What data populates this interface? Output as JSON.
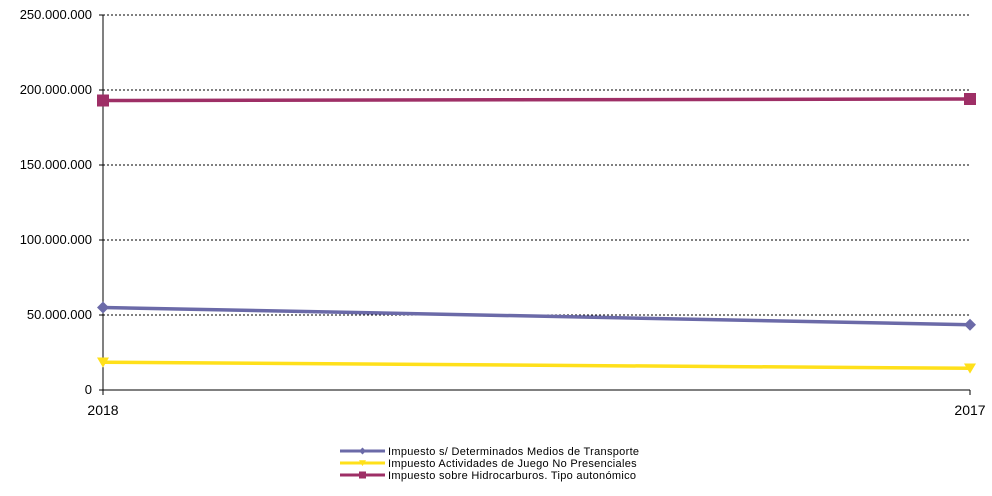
{
  "chart_data": {
    "type": "line",
    "title": "",
    "xlabel": "",
    "ylabel": "",
    "x": [
      "2018",
      "2017"
    ],
    "ylim": [
      0,
      250000000
    ],
    "yticks": [
      0,
      50000000,
      100000000,
      150000000,
      200000000,
      250000000
    ],
    "ytick_labels": [
      "0",
      "50.000.000",
      "100.000.000",
      "150.000.000",
      "200.000.000",
      "250.000.000"
    ],
    "grid": "horizontal dotted",
    "legend_position": "bottom-center",
    "series": [
      {
        "name": "Impuesto s/ Determinados Medios de Transporte",
        "values": [
          55000000,
          43500000
        ],
        "color": "#6b6aa8",
        "marker": "diamond"
      },
      {
        "name": "Impuesto Actividades de Juego No Presenciales",
        "values": [
          18500000,
          14500000
        ],
        "color": "#ffe01a",
        "marker": "triangle-down"
      },
      {
        "name": "Impuesto sobre Hidrocarburos. Tipo autonómico",
        "values": [
          193000000,
          194000000
        ],
        "color": "#9e2f66",
        "marker": "square"
      }
    ]
  }
}
